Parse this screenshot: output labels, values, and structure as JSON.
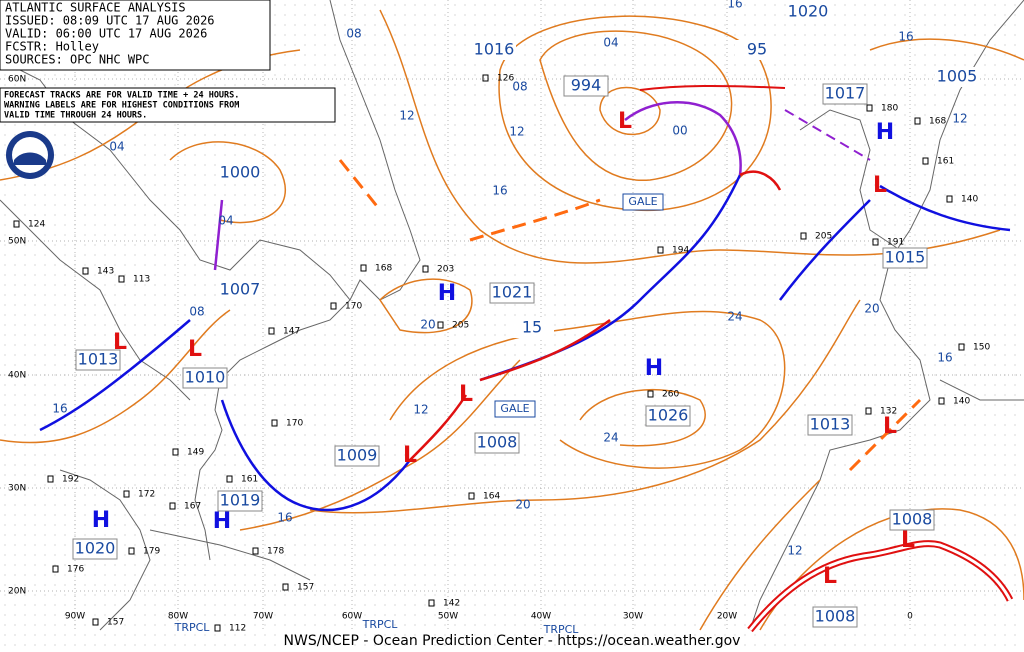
{
  "header": {
    "lines": [
      "ATLANTIC SURFACE ANALYSIS",
      "ISSUED: 08:09 UTC 17 AUG 2026",
      "VALID: 06:00 UTC 17 AUG 2026",
      "FCSTR: Holley",
      "SOURCES: OPC NHC WPC"
    ]
  },
  "notice": {
    "lines": [
      "FORECAST TRACKS ARE FOR VALID TIME + 24 HOURS.",
      "WARNING LABELS ARE FOR HIGHEST CONDITIONS FROM",
      "VALID TIME THROUGH 24 HOURS."
    ]
  },
  "pressure_systems": [
    {
      "symbol": "L",
      "pressure": "994"
    },
    {
      "symbol": "L",
      "pressure": "1009"
    },
    {
      "symbol": "L",
      "pressure": "1008"
    },
    {
      "symbol": "L",
      "pressure": "1013"
    },
    {
      "symbol": "H",
      "pressure": "1021"
    },
    {
      "symbol": "H",
      "pressure": "1026"
    },
    {
      "symbol": "H",
      "pressure": "1019"
    },
    {
      "symbol": "H",
      "pressure": "1020"
    },
    {
      "symbol": "H",
      "pressure": "1017"
    },
    {
      "symbol": "L",
      "pressure": "1015"
    },
    {
      "symbol": "L",
      "pressure": "1008"
    },
    {
      "symbol": "L",
      "pressure": "1008"
    },
    {
      "symbol": "L",
      "pressure": "1013"
    },
    {
      "symbol": "L",
      "pressure": "1010"
    }
  ],
  "isobar_labels": [
    "1000",
    "1007",
    "1016",
    "1020",
    "1005",
    "95",
    "15",
    "08",
    "04",
    "00",
    "12",
    "16",
    "12",
    "16",
    "12",
    "04",
    "04",
    "08",
    "16",
    "16",
    "20",
    "12",
    "24",
    "24",
    "20",
    "20",
    "16",
    "12",
    "08",
    "16"
  ],
  "gale_labels": [
    "GALE",
    "GALE"
  ],
  "tropical_labels": [
    "TRPCL",
    "TRPCL",
    "TRPCL"
  ],
  "lat_labels": [
    "60N",
    "50N",
    "40N",
    "30N",
    "20N"
  ],
  "lon_labels": [
    "90W",
    "80W",
    "70W",
    "60W",
    "50W",
    "40W",
    "30W",
    "20W",
    "0"
  ],
  "stations": [
    "124",
    "143",
    "113",
    "168",
    "203",
    "205",
    "194",
    "205",
    "191",
    "180",
    "168",
    "161",
    "140",
    "170",
    "147",
    "170",
    "149",
    "161",
    "192",
    "172",
    "167",
    "179",
    "178",
    "176",
    "157",
    "164",
    "142",
    "132",
    "140",
    "150",
    "260",
    "126",
    "157",
    "112"
  ],
  "footer": "NWS/NCEP - Ocean Prediction Center - https://ocean.weather.gov"
}
